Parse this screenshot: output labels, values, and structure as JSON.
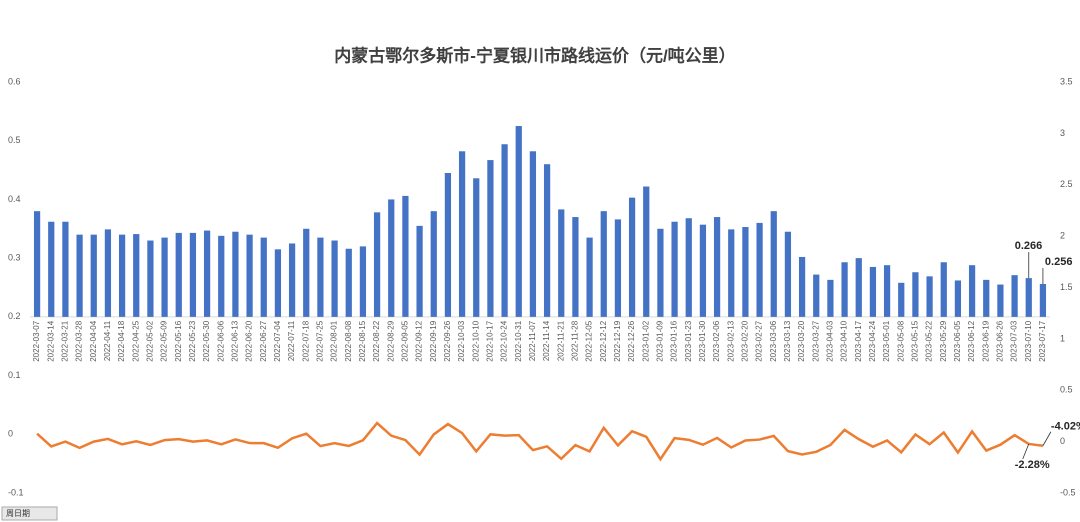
{
  "chart_data": {
    "type": "bar-line",
    "title": "内蒙古鄂尔多斯市-宁夏银川市路线运价（元/吨公里）",
    "filter_label": "周日期",
    "categories": [
      "2022-03-07",
      "2022-03-14",
      "2022-03-21",
      "2022-03-28",
      "2022-04-04",
      "2022-04-11",
      "2022-04-18",
      "2022-04-25",
      "2022-05-02",
      "2022-05-09",
      "2022-05-16",
      "2022-05-23",
      "2022-05-30",
      "2022-06-06",
      "2022-06-13",
      "2022-06-20",
      "2022-06-27",
      "2022-07-04",
      "2022-07-11",
      "2022-07-18",
      "2022-07-25",
      "2022-08-01",
      "2022-08-08",
      "2022-08-15",
      "2022-08-22",
      "2022-08-29",
      "2022-09-05",
      "2022-09-12",
      "2022-09-19",
      "2022-09-26",
      "2022-10-03",
      "2022-10-10",
      "2022-10-17",
      "2022-10-24",
      "2022-10-31",
      "2022-11-07",
      "2022-11-14",
      "2022-11-21",
      "2022-11-28",
      "2022-12-05",
      "2022-12-12",
      "2022-12-19",
      "2022-12-26",
      "2023-01-02",
      "2023-01-09",
      "2023-01-16",
      "2023-01-23",
      "2023-01-30",
      "2023-02-06",
      "2023-02-13",
      "2023-02-20",
      "2023-02-27",
      "2023-03-06",
      "2023-03-13",
      "2023-03-20",
      "2023-03-27",
      "2023-04-03",
      "2023-04-10",
      "2023-04-17",
      "2023-04-24",
      "2023-05-01",
      "2023-05-08",
      "2023-05-15",
      "2023-05-22",
      "2023-05-29",
      "2023-06-05",
      "2023-06-12",
      "2023-06-19",
      "2023-06-26",
      "2023-07-03",
      "2023-07-10",
      "2023-07-17"
    ],
    "series": [
      {
        "type": "bar",
        "color": "#4472c4",
        "axis": "y",
        "values": [
          0.38,
          0.362,
          0.362,
          0.34,
          0.34,
          0.349,
          0.34,
          0.341,
          0.33,
          0.335,
          0.343,
          0.343,
          0.347,
          0.338,
          0.345,
          0.34,
          0.335,
          0.315,
          0.325,
          0.35,
          0.335,
          0.33,
          0.316,
          0.32,
          0.378,
          0.4,
          0.406,
          0.355,
          0.38,
          0.445,
          0.482,
          0.436,
          0.467,
          0.494,
          0.525,
          0.482,
          0.46,
          0.383,
          0.37,
          0.335,
          0.38,
          0.366,
          0.403,
          0.422,
          0.35,
          0.362,
          0.368,
          0.357,
          0.37,
          0.349,
          0.353,
          0.36,
          0.38,
          0.345,
          0.302,
          0.272,
          0.263,
          0.293,
          0.3,
          0.285,
          0.288,
          0.258,
          0.276,
          0.269,
          0.293,
          0.262,
          0.288,
          0.263,
          0.255,
          0.271,
          0.266,
          0.256
        ],
        "labeled": [
          70,
          71
        ]
      },
      {
        "type": "line",
        "color": "#ed7d31",
        "axis": "y2",
        "values": [
          0.077,
          -0.047,
          0,
          -0.061,
          0,
          0.026,
          -0.026,
          0.003,
          -0.032,
          0.015,
          0.024,
          0,
          0.012,
          -0.026,
          0.021,
          -0.014,
          -0.015,
          -0.06,
          0.032,
          0.077,
          -0.043,
          -0.015,
          -0.042,
          0.013,
          0.181,
          0.058,
          0.015,
          -0.126,
          0.07,
          0.171,
          0.083,
          -0.095,
          0.071,
          0.058,
          0.063,
          -0.082,
          -0.046,
          -0.167,
          -0.034,
          -0.095,
          0.134,
          -0.037,
          0.101,
          0.047,
          -0.171,
          0.034,
          0.017,
          -0.03,
          0.036,
          -0.057,
          0.011,
          0.02,
          0.056,
          -0.092,
          -0.125,
          -0.099,
          -0.033,
          0.114,
          0.024,
          -0.05,
          0.011,
          -0.104,
          0.07,
          -0.025,
          0.089,
          -0.106,
          0.099,
          -0.087,
          -0.03,
          0.063,
          -0.0228,
          -0.0402
        ],
        "value_labels": [
          null,
          null,
          null,
          null,
          null,
          null,
          null,
          null,
          null,
          null,
          null,
          null,
          null,
          null,
          null,
          null,
          null,
          null,
          null,
          null,
          null,
          null,
          null,
          null,
          null,
          null,
          null,
          null,
          null,
          null,
          null,
          null,
          null,
          null,
          null,
          null,
          null,
          null,
          null,
          null,
          null,
          null,
          null,
          null,
          null,
          null,
          null,
          null,
          null,
          null,
          null,
          null,
          null,
          null,
          null,
          null,
          null,
          null,
          null,
          null,
          null,
          null,
          null,
          null,
          null,
          null,
          null,
          null,
          null,
          null,
          "-2.28%",
          "-4.02%"
        ]
      }
    ],
    "ylim": [
      -0.1,
      0.6
    ],
    "yticks": [
      -0.1,
      0,
      0.1,
      0.2,
      0.3,
      0.4,
      0.5,
      0.6
    ],
    "y2lim": [
      -0.5,
      3.5
    ],
    "y2ticks": [
      -0.5,
      0,
      0.5,
      1,
      1.5,
      2,
      2.5,
      3,
      3.5
    ],
    "xaxis_crosses": 0.2,
    "grid": false
  }
}
